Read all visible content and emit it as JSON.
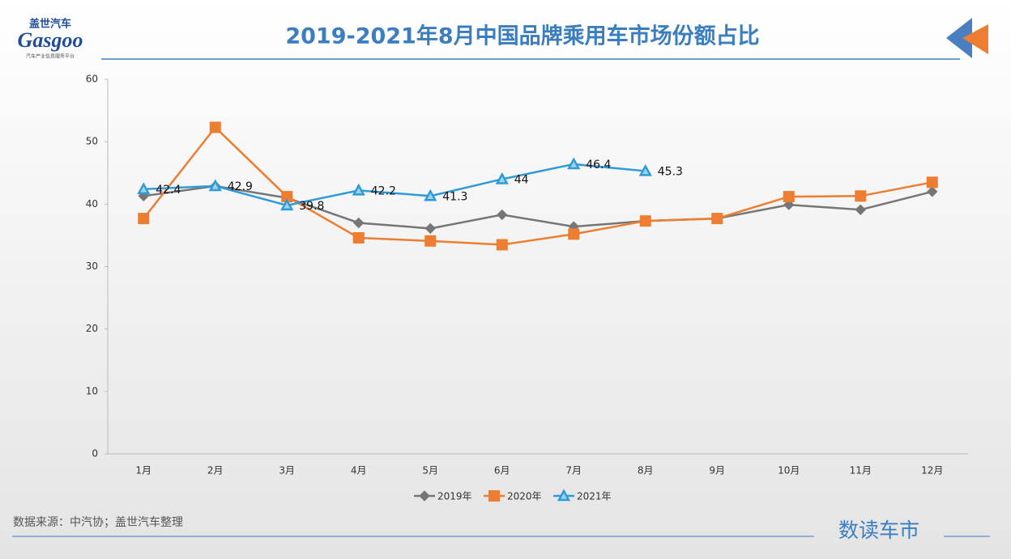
{
  "brand": {
    "logo": "Gasgoo",
    "logo_cn": "盖世汽车",
    "tagline": "汽车产业信息服务平台",
    "column": "数读车市"
  },
  "source": "数据来源：中汽协；盖世汽车整理",
  "chart_data": {
    "type": "line",
    "title": "2019-2021年8月中国品牌乘用车市场份额占比",
    "categories": [
      "1月",
      "2月",
      "3月",
      "4月",
      "5月",
      "6月",
      "7月",
      "8月",
      "9月",
      "10月",
      "11月",
      "12月"
    ],
    "series": [
      {
        "name": "2019年",
        "color": "#767676",
        "marker": "diamond",
        "values": [
          41.3,
          42.9,
          41.0,
          37.0,
          36.1,
          38.3,
          36.4,
          37.3,
          37.7,
          39.9,
          39.1,
          42.0
        ]
      },
      {
        "name": "2020年",
        "color": "#ed7d31",
        "marker": "square",
        "values": [
          37.7,
          52.3,
          41.2,
          34.6,
          34.1,
          33.5,
          35.2,
          37.3,
          37.7,
          41.2,
          41.3,
          43.5
        ]
      },
      {
        "name": "2021年",
        "color": "#2e9bd6",
        "marker": "triangle",
        "data_labels": true,
        "values": [
          42.4,
          42.9,
          39.8,
          42.2,
          41.3,
          44,
          46.4,
          45.3,
          null,
          null,
          null,
          null
        ]
      }
    ],
    "ylim": [
      0,
      60
    ],
    "yticks": [
      0,
      10,
      20,
      30,
      40,
      50,
      60
    ],
    "grid": false,
    "legend": "bottom"
  }
}
